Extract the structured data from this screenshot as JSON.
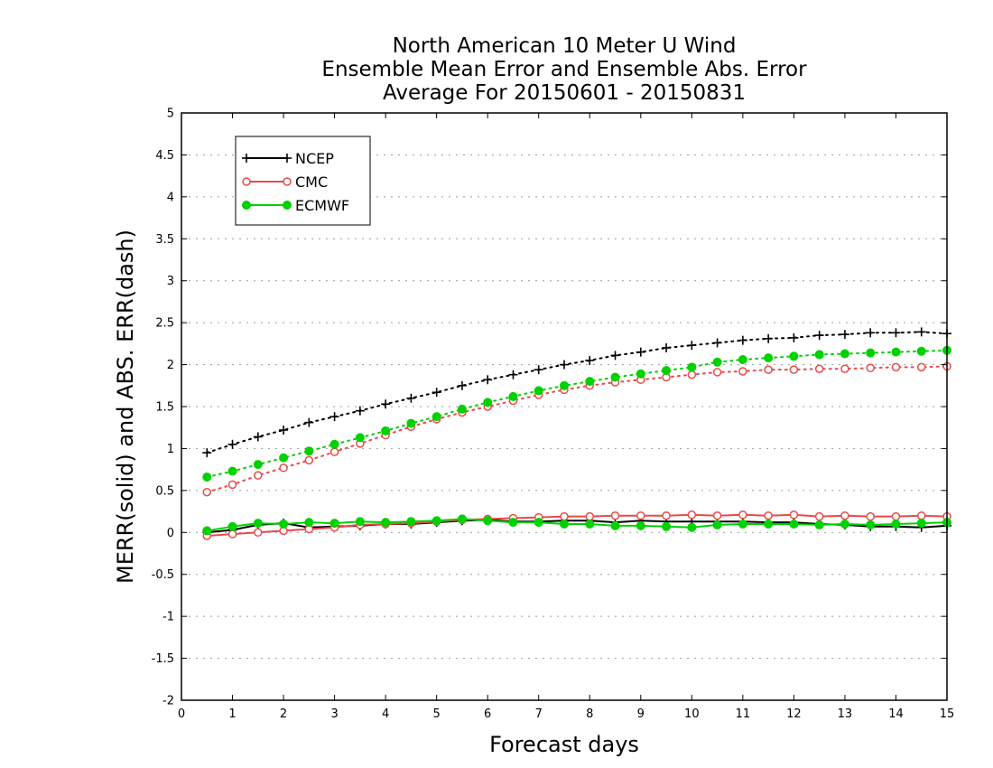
{
  "chart_data": {
    "type": "line",
    "title": [
      "North American 10 Meter U Wind",
      "Ensemble Mean Error and Ensemble Abs. Error",
      "Average For 20150601 - 20150831"
    ],
    "xlabel": "Forecast days",
    "ylabel": "MERR(solid) and ABS. ERR(dash)",
    "xlim": [
      0,
      15
    ],
    "ylim": [
      -2,
      5
    ],
    "xticks": [
      0,
      1,
      2,
      3,
      4,
      5,
      6,
      7,
      8,
      9,
      10,
      11,
      12,
      13,
      14,
      15
    ],
    "yticks": [
      -2,
      -1.5,
      -1,
      -0.5,
      0,
      0.5,
      1,
      1.5,
      2,
      2.5,
      3,
      3.5,
      4,
      4.5,
      5
    ],
    "grid": "horizontal-dotted",
    "legend_position": "top-left",
    "x": [
      0.5,
      1,
      1.5,
      2,
      2.5,
      3,
      3.5,
      4,
      4.5,
      5,
      5.5,
      6,
      6.5,
      7,
      7.5,
      8,
      8.5,
      9,
      9.5,
      10,
      10.5,
      11,
      11.5,
      12,
      12.5,
      13,
      13.5,
      14,
      14.5,
      15
    ],
    "series": [
      {
        "name": "NCEP",
        "color": "#000000",
        "marker": "plus",
        "merr": [
          0.0,
          0.03,
          0.09,
          0.11,
          0.06,
          0.07,
          0.08,
          0.1,
          0.1,
          0.12,
          0.14,
          0.15,
          0.13,
          0.13,
          0.14,
          0.14,
          0.12,
          0.14,
          0.13,
          0.13,
          0.13,
          0.13,
          0.12,
          0.12,
          0.1,
          0.09,
          0.07,
          0.07,
          0.06,
          0.08
        ],
        "abs_err": [
          0.95,
          1.05,
          1.14,
          1.22,
          1.31,
          1.38,
          1.45,
          1.53,
          1.6,
          1.67,
          1.75,
          1.82,
          1.88,
          1.94,
          2.0,
          2.05,
          2.11,
          2.15,
          2.2,
          2.23,
          2.26,
          2.29,
          2.31,
          2.32,
          2.35,
          2.36,
          2.38,
          2.38,
          2.39,
          2.37
        ]
      },
      {
        "name": "CMC",
        "color": "#e84a4a",
        "marker": "open-circle",
        "merr": [
          -0.04,
          -0.02,
          0.0,
          0.02,
          0.04,
          0.06,
          0.09,
          0.1,
          0.11,
          0.13,
          0.15,
          0.16,
          0.17,
          0.18,
          0.19,
          0.19,
          0.2,
          0.2,
          0.2,
          0.21,
          0.2,
          0.21,
          0.2,
          0.21,
          0.19,
          0.2,
          0.19,
          0.19,
          0.2,
          0.19
        ],
        "abs_err": [
          0.48,
          0.57,
          0.68,
          0.77,
          0.86,
          0.96,
          1.06,
          1.16,
          1.26,
          1.35,
          1.43,
          1.5,
          1.57,
          1.64,
          1.7,
          1.75,
          1.79,
          1.82,
          1.85,
          1.88,
          1.91,
          1.92,
          1.94,
          1.94,
          1.95,
          1.95,
          1.96,
          1.97,
          1.97,
          1.98
        ]
      },
      {
        "name": "ECMWF",
        "color": "#00d100",
        "marker": "filled-circle",
        "merr": [
          0.02,
          0.07,
          0.11,
          0.1,
          0.12,
          0.11,
          0.13,
          0.12,
          0.13,
          0.14,
          0.16,
          0.14,
          0.12,
          0.12,
          0.1,
          0.1,
          0.08,
          0.08,
          0.07,
          0.06,
          0.09,
          0.1,
          0.1,
          0.1,
          0.09,
          0.1,
          0.09,
          0.1,
          0.11,
          0.12
        ],
        "abs_err": [
          0.66,
          0.73,
          0.81,
          0.89,
          0.97,
          1.05,
          1.13,
          1.21,
          1.3,
          1.38,
          1.47,
          1.55,
          1.62,
          1.69,
          1.75,
          1.8,
          1.85,
          1.89,
          1.93,
          1.97,
          2.03,
          2.06,
          2.08,
          2.1,
          2.12,
          2.13,
          2.14,
          2.15,
          2.16,
          2.17
        ]
      }
    ]
  }
}
